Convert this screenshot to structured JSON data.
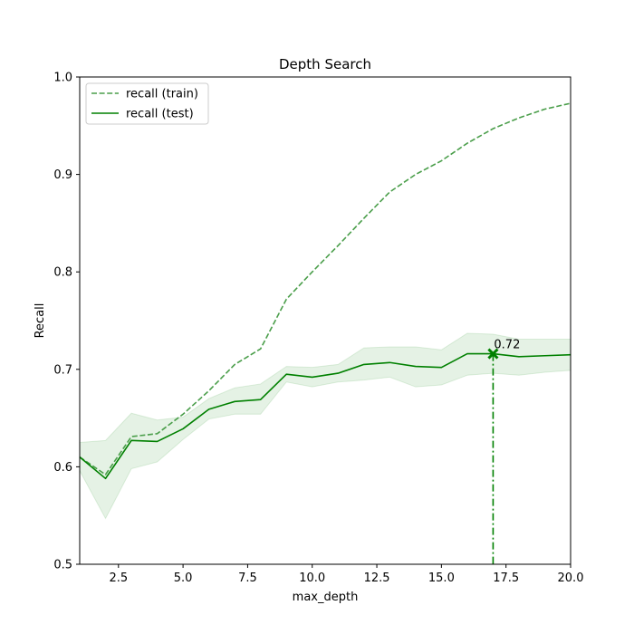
{
  "chart_data": {
    "type": "line",
    "title": "Depth Search",
    "xlabel": "max_depth",
    "ylabel": "Recall",
    "xlim": [
      1,
      20
    ],
    "ylim": [
      0.5,
      1.0
    ],
    "x_ticks": [
      2.5,
      5.0,
      7.5,
      10.0,
      12.5,
      15.0,
      17.5,
      20.0
    ],
    "x_tick_labels": [
      "2.5",
      "5.0",
      "7.5",
      "10.0",
      "12.5",
      "15.0",
      "17.5",
      "20.0"
    ],
    "y_ticks": [
      0.5,
      0.6,
      0.7,
      0.8,
      0.9,
      1.0
    ],
    "y_tick_labels": [
      "0.5",
      "0.6",
      "0.7",
      "0.8",
      "0.9",
      "1.0"
    ],
    "grid": false,
    "legend_position": "top-left",
    "x": [
      1,
      2,
      3,
      4,
      5,
      6,
      7,
      8,
      9,
      10,
      11,
      12,
      13,
      14,
      15,
      16,
      17,
      18,
      19,
      20
    ],
    "series": [
      {
        "name": "recall (train)",
        "style": "dashed",
        "color": "#4a9e4a",
        "values": [
          0.61,
          0.592,
          0.631,
          0.634,
          0.654,
          0.678,
          0.705,
          0.721,
          0.772,
          0.8,
          0.827,
          0.855,
          0.882,
          0.9,
          0.914,
          0.932,
          0.947,
          0.958,
          0.967,
          0.973
        ]
      },
      {
        "name": "recall (test)",
        "style": "solid",
        "color": "#008000",
        "values": [
          0.61,
          0.588,
          0.627,
          0.626,
          0.639,
          0.659,
          0.667,
          0.669,
          0.695,
          0.692,
          0.696,
          0.705,
          0.707,
          0.703,
          0.702,
          0.716,
          0.716,
          0.713,
          0.714,
          0.715
        ],
        "band_upper": [
          0.625,
          0.627,
          0.655,
          0.648,
          0.651,
          0.67,
          0.681,
          0.685,
          0.703,
          0.702,
          0.705,
          0.722,
          0.723,
          0.723,
          0.72,
          0.737,
          0.736,
          0.731,
          0.731,
          0.731
        ],
        "band_lower": [
          0.596,
          0.547,
          0.598,
          0.605,
          0.628,
          0.649,
          0.654,
          0.654,
          0.687,
          0.682,
          0.687,
          0.689,
          0.692,
          0.682,
          0.684,
          0.694,
          0.696,
          0.694,
          0.697,
          0.699
        ],
        "band_color": "#008000"
      }
    ],
    "best_point": {
      "x": 17,
      "y": 0.716,
      "label": "0.72"
    }
  }
}
